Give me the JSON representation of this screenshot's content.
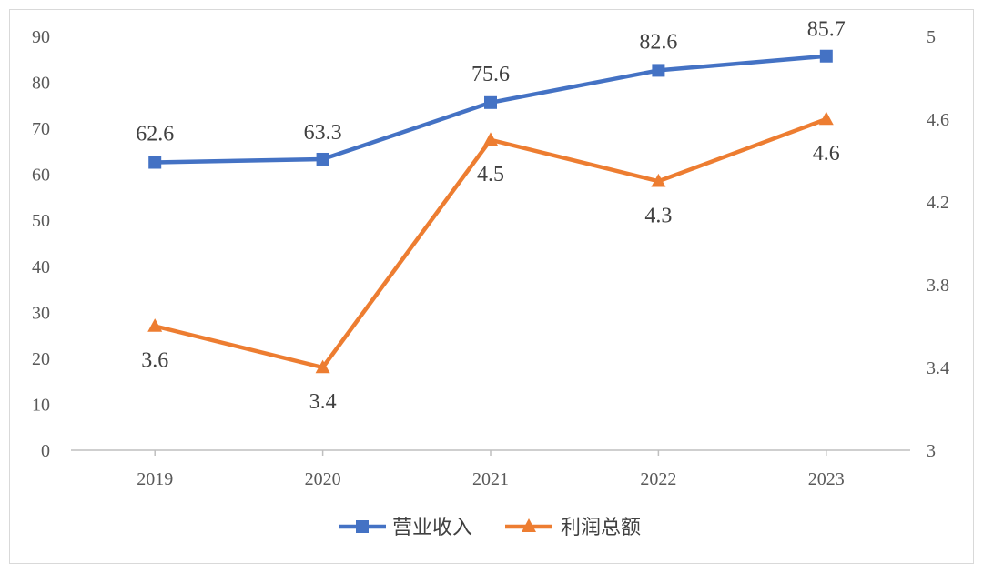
{
  "chart_data": {
    "type": "line",
    "categories": [
      "2019",
      "2020",
      "2021",
      "2022",
      "2023"
    ],
    "y_left": {
      "min": 0,
      "max": 90,
      "ticks": [
        "0",
        "10",
        "20",
        "30",
        "40",
        "50",
        "60",
        "70",
        "80",
        "90"
      ]
    },
    "y_right": {
      "min": 3,
      "max": 5,
      "ticks": [
        "3",
        "3.4",
        "3.8",
        "4.2",
        "4.6",
        "5"
      ]
    },
    "series": [
      {
        "name": "营业收入",
        "axis": "left",
        "values": [
          62.6,
          63.3,
          75.6,
          82.6,
          85.7
        ],
        "labels": [
          "62.6",
          "63.3",
          "75.6",
          "82.6",
          "85.7"
        ],
        "color": "#4472C4",
        "marker": "square"
      },
      {
        "name": "利润总额",
        "axis": "right",
        "values": [
          3.6,
          3.4,
          4.5,
          4.3,
          4.6
        ],
        "labels": [
          "3.6",
          "3.4",
          "4.5",
          "4.3",
          "4.6"
        ],
        "color": "#ED7D31",
        "marker": "triangle"
      }
    ],
    "legend_position": "bottom",
    "grid": false
  }
}
